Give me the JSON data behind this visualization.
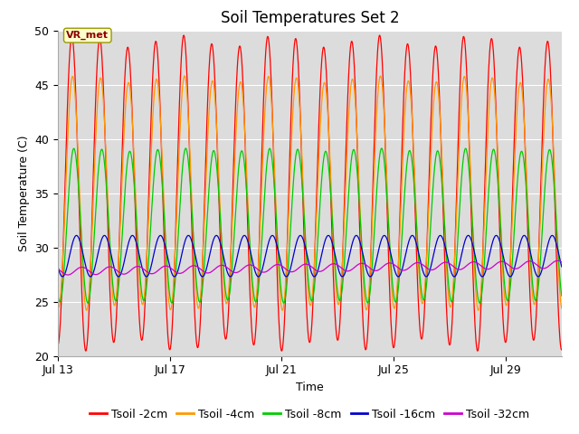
{
  "title": "Soil Temperatures Set 2",
  "xlabel": "Time",
  "ylabel": "Soil Temperature (C)",
  "ylim": [
    20,
    50
  ],
  "xlim_days": [
    0,
    18
  ],
  "xtick_positions": [
    0,
    4,
    8,
    12,
    16
  ],
  "xtick_labels": [
    "Jul 13",
    "Jul 17",
    "Jul 21",
    "Jul 25",
    "Jul 29"
  ],
  "ytick_positions": [
    20,
    25,
    30,
    35,
    40,
    45,
    50
  ],
  "background_color": "#dcdcdc",
  "legend_entries": [
    "Tsoil -2cm",
    "Tsoil -4cm",
    "Tsoil -8cm",
    "Tsoil -16cm",
    "Tsoil -32cm"
  ],
  "legend_colors": [
    "#ff0000",
    "#ff9900",
    "#00cc00",
    "#0000cc",
    "#cc00cc"
  ],
  "annotation_text": "VR_met",
  "title_fontsize": 12,
  "axis_label_fontsize": 9,
  "tick_fontsize": 9,
  "legend_fontsize": 9,
  "total_days": 18,
  "mean_2cm": 35.0,
  "amp_2cm": 14.0,
  "phase_2cm": 1.55,
  "mean_4cm": 35.0,
  "amp_4cm": 10.5,
  "phase_4cm": 1.72,
  "mean_8cm": 32.0,
  "amp_8cm": 7.0,
  "phase_8cm": 2.0,
  "mean_16cm": 29.2,
  "amp_16cm": 1.9,
  "phase_16cm": 2.6,
  "mean_32cm": 27.8,
  "amp_32cm": 0.35,
  "phase_32cm": 3.8,
  "trend_32cm": 0.035
}
